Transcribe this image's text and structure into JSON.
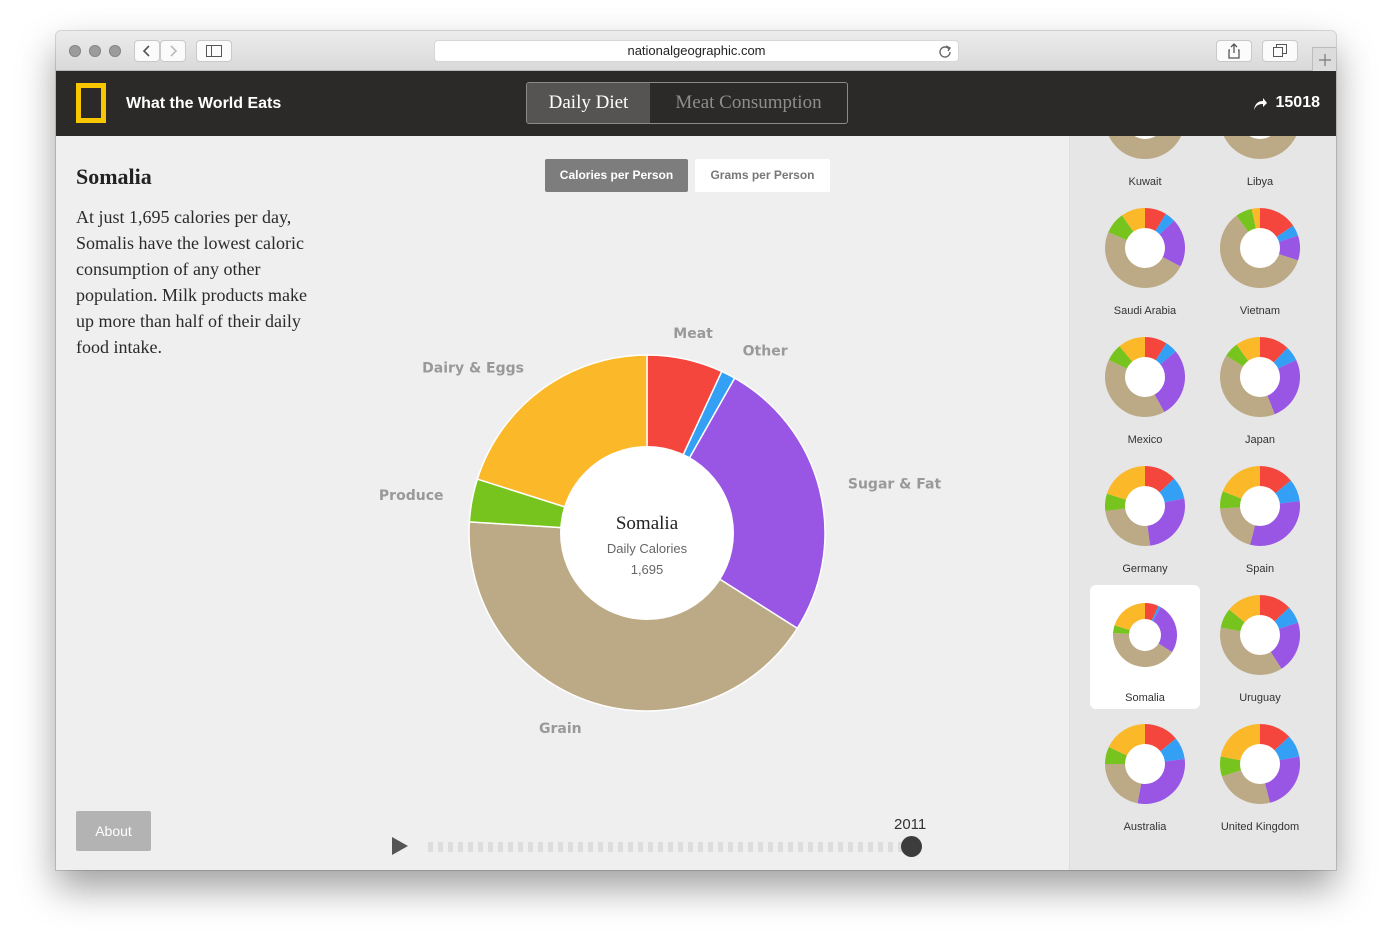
{
  "browser": {
    "url": "nationalgeographic.com"
  },
  "app": {
    "title": "What the World Eats",
    "share_count": "15018"
  },
  "tabs": [
    {
      "label": "Daily Diet",
      "active": true
    },
    {
      "label": "Meat Consumption",
      "active": false
    }
  ],
  "metric_buttons": [
    {
      "label": "Calories per Person",
      "active": true
    },
    {
      "label": "Grams per Person",
      "active": false
    }
  ],
  "country": {
    "name": "Somalia",
    "description": "At just 1,695 calories per day, Somalis have the lowest caloric consumption of any other population. Milk products make up more than half of their daily food intake."
  },
  "chart_data": {
    "type": "pie",
    "center_title": "Somalia",
    "center_subtitle": "Daily Calories",
    "center_value": "1,695",
    "slices": [
      {
        "label": "Meat",
        "value": 6.9,
        "color": "#f4463c"
      },
      {
        "label": "Other",
        "value": 1.3,
        "color": "#33a0f5"
      },
      {
        "label": "Sugar & Fat",
        "value": 25.8,
        "color": "#9955e3"
      },
      {
        "label": "Grain",
        "value": 42.0,
        "color": "#bcaa86"
      },
      {
        "label": "Produce",
        "value": 3.9,
        "color": "#78c41f"
      },
      {
        "label": "Dairy & Eggs",
        "value": 20.1,
        "color": "#fbb829"
      }
    ]
  },
  "timeline": {
    "year": "2011",
    "play_icon": "play-icon"
  },
  "about_label": "About",
  "sidebar_countries": [
    {
      "name": "Kuwait",
      "shares": [
        8,
        3,
        20,
        40,
        8,
        21
      ],
      "selected": false
    },
    {
      "name": "Libya",
      "shares": [
        9,
        3,
        18,
        42,
        6,
        22
      ],
      "selected": false
    },
    {
      "name": "Saudi Arabia",
      "shares": [
        8,
        4,
        18,
        45,
        8,
        9
      ],
      "selected": false
    },
    {
      "name": "Vietnam",
      "shares": [
        14,
        4,
        9,
        54,
        6,
        3
      ],
      "selected": false
    },
    {
      "name": "Mexico",
      "shares": [
        9,
        5,
        28,
        40,
        7,
        11
      ],
      "selected": false
    },
    {
      "name": "Japan",
      "shares": [
        12,
        6,
        26,
        40,
        6,
        10
      ],
      "selected": false
    },
    {
      "name": "Germany",
      "shares": [
        13,
        9,
        26,
        25,
        7,
        20
      ],
      "selected": false
    },
    {
      "name": "Spain",
      "shares": [
        14,
        9,
        31,
        20,
        7,
        19
      ],
      "selected": false
    },
    {
      "name": "Somalia",
      "shares": [
        6.9,
        1.3,
        25.8,
        42.0,
        3.9,
        20.1
      ],
      "selected": true
    },
    {
      "name": "Uruguay",
      "shares": [
        13,
        7,
        21,
        37,
        8,
        14
      ],
      "selected": false
    },
    {
      "name": "Australia",
      "shares": [
        14,
        9,
        30,
        22,
        7,
        18
      ],
      "selected": false
    },
    {
      "name": "United Kingdom",
      "shares": [
        13,
        9,
        24,
        24,
        8,
        22
      ],
      "selected": false
    }
  ]
}
